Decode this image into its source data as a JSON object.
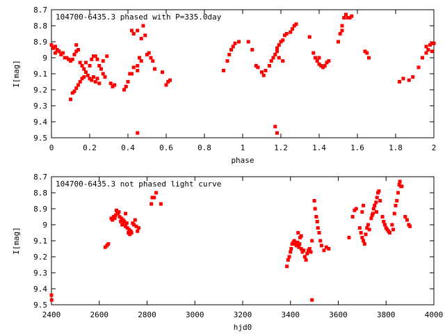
{
  "chart_data": [
    {
      "type": "scatter",
      "title": "104700-6435.3 phased with P=335.0day",
      "xlabel": "phase",
      "ylabel": "I[mag]",
      "xlim": [
        0,
        2
      ],
      "ylim": [
        9.5,
        8.7
      ],
      "y_inverted": true,
      "xticks": [
        "0",
        "0.2",
        "0.4",
        "0.6",
        "0.8",
        "1",
        "1.2",
        "1.4",
        "1.6",
        "1.8",
        "2"
      ],
      "yticks": [
        "8.7",
        "8.8",
        "8.9",
        "9",
        "9.1",
        "9.2",
        "9.3",
        "9.4",
        "9.5"
      ],
      "marker_color": "#ff0000",
      "grid": false,
      "points": [
        [
          0.0,
          8.92
        ],
        [
          0.01,
          8.94
        ],
        [
          0.02,
          8.93
        ],
        [
          0.02,
          8.97
        ],
        [
          0.03,
          8.95
        ],
        [
          0.04,
          8.96
        ],
        [
          0.05,
          8.98
        ],
        [
          0.06,
          8.97
        ],
        [
          0.07,
          9.0
        ],
        [
          0.08,
          9.0
        ],
        [
          0.09,
          9.01
        ],
        [
          0.1,
          9.02
        ],
        [
          0.11,
          9.01
        ],
        [
          0.12,
          8.98
        ],
        [
          0.13,
          8.96
        ],
        [
          0.14,
          8.95
        ],
        [
          0.1,
          9.26
        ],
        [
          0.11,
          9.22
        ],
        [
          0.12,
          9.21
        ],
        [
          0.13,
          9.19
        ],
        [
          0.14,
          9.17
        ],
        [
          0.15,
          9.15
        ],
        [
          0.16,
          9.13
        ],
        [
          0.17,
          9.12
        ],
        [
          0.15,
          9.03
        ],
        [
          0.16,
          9.05
        ],
        [
          0.17,
          9.07
        ],
        [
          0.18,
          9.09
        ],
        [
          0.19,
          9.11
        ],
        [
          0.2,
          9.05
        ],
        [
          0.21,
          9.01
        ],
        [
          0.22,
          8.99
        ],
        [
          0.23,
          8.99
        ],
        [
          0.24,
          9.01
        ],
        [
          0.25,
          9.05
        ],
        [
          0.26,
          9.07
        ],
        [
          0.27,
          9.1
        ],
        [
          0.28,
          9.12
        ],
        [
          0.2,
          9.13
        ],
        [
          0.21,
          9.14
        ],
        [
          0.22,
          9.12
        ],
        [
          0.23,
          9.15
        ],
        [
          0.24,
          9.13
        ],
        [
          0.25,
          9.16
        ],
        [
          0.13,
          8.92
        ],
        [
          0.18,
          9.03
        ],
        [
          0.27,
          9.02
        ],
        [
          0.29,
          8.99
        ],
        [
          0.31,
          9.16
        ],
        [
          0.32,
          9.18
        ],
        [
          0.33,
          9.17
        ],
        [
          0.38,
          9.2
        ],
        [
          0.39,
          9.18
        ],
        [
          0.4,
          9.15
        ],
        [
          0.41,
          9.1
        ],
        [
          0.42,
          9.1
        ],
        [
          0.43,
          9.06
        ],
        [
          0.42,
          8.83
        ],
        [
          0.43,
          8.85
        ],
        [
          0.45,
          8.83
        ],
        [
          0.47,
          8.88
        ],
        [
          0.48,
          8.8
        ],
        [
          0.49,
          8.86
        ],
        [
          0.46,
          9.0
        ],
        [
          0.47,
          9.02
        ],
        [
          0.5,
          8.98
        ],
        [
          0.51,
          8.97
        ],
        [
          0.52,
          9.0
        ],
        [
          0.53,
          9.02
        ],
        [
          0.54,
          9.07
        ],
        [
          0.45,
          9.05
        ],
        [
          0.45,
          9.08
        ],
        [
          0.45,
          9.47
        ],
        [
          0.58,
          9.09
        ],
        [
          0.6,
          9.17
        ],
        [
          0.61,
          9.15
        ],
        [
          0.62,
          9.14
        ],
        [
          0.9,
          9.08
        ],
        [
          0.92,
          9.02
        ],
        [
          0.93,
          8.98
        ],
        [
          0.94,
          8.95
        ],
        [
          0.95,
          8.93
        ],
        [
          0.96,
          8.91
        ],
        [
          0.98,
          8.9
        ],
        [
          1.03,
          8.9
        ],
        [
          1.05,
          8.95
        ],
        [
          1.07,
          9.05
        ],
        [
          1.08,
          9.06
        ],
        [
          1.1,
          9.09
        ],
        [
          1.11,
          9.11
        ],
        [
          1.12,
          9.08
        ],
        [
          1.14,
          9.05
        ],
        [
          1.15,
          9.02
        ],
        [
          1.16,
          9.0
        ],
        [
          1.17,
          8.98
        ],
        [
          1.18,
          8.96
        ],
        [
          1.19,
          8.92
        ],
        [
          1.2,
          8.9
        ],
        [
          1.21,
          8.89
        ],
        [
          1.22,
          8.86
        ],
        [
          1.23,
          8.85
        ],
        [
          1.25,
          8.84
        ],
        [
          1.26,
          8.82
        ],
        [
          1.27,
          8.8
        ],
        [
          1.28,
          8.79
        ],
        [
          1.18,
          8.94
        ],
        [
          1.19,
          9.0
        ],
        [
          1.21,
          9.02
        ],
        [
          1.17,
          9.43
        ],
        [
          1.18,
          9.47
        ],
        [
          1.35,
          8.87
        ],
        [
          1.37,
          8.97
        ],
        [
          1.38,
          9.0
        ],
        [
          1.39,
          9.02
        ],
        [
          1.4,
          9.04
        ],
        [
          1.41,
          9.05
        ],
        [
          1.42,
          9.06
        ],
        [
          1.43,
          9.05
        ],
        [
          1.44,
          9.03
        ],
        [
          1.45,
          9.02
        ],
        [
          1.4,
          9.0
        ],
        [
          1.5,
          8.9
        ],
        [
          1.51,
          8.85
        ],
        [
          1.52,
          8.8
        ],
        [
          1.53,
          8.75
        ],
        [
          1.54,
          8.73
        ],
        [
          1.55,
          8.75
        ],
        [
          1.56,
          8.75
        ],
        [
          1.52,
          8.83
        ],
        [
          1.57,
          8.74
        ],
        [
          1.64,
          8.96
        ],
        [
          1.65,
          8.97
        ],
        [
          1.66,
          9.0
        ],
        [
          1.82,
          9.15
        ],
        [
          1.84,
          9.13
        ],
        [
          1.87,
          9.14
        ],
        [
          1.89,
          9.12
        ],
        [
          1.92,
          9.06
        ],
        [
          1.94,
          9.0
        ],
        [
          1.96,
          8.97
        ],
        [
          1.97,
          8.95
        ],
        [
          1.98,
          8.92
        ],
        [
          1.99,
          8.91
        ],
        [
          2.0,
          8.91
        ],
        [
          1.96,
          8.93
        ],
        [
          1.99,
          8.96
        ]
      ]
    },
    {
      "type": "scatter",
      "title": "104700-6435.3 not phased light curve",
      "xlabel": "hjd0",
      "ylabel": "I[mag]",
      "xlim": [
        2400,
        4000
      ],
      "ylim": [
        9.5,
        8.7
      ],
      "y_inverted": true,
      "xticks": [
        "2400",
        "2600",
        "2800",
        "3000",
        "3200",
        "3400",
        "3600",
        "3800",
        "4000"
      ],
      "yticks": [
        "8.7",
        "8.8",
        "8.9",
        "9",
        "9.1",
        "9.2",
        "9.3",
        "9.4",
        "9.5"
      ],
      "marker_color": "#ff0000",
      "grid": false,
      "points": [
        [
          2400,
          9.44
        ],
        [
          2401,
          9.47
        ],
        [
          2625,
          9.14
        ],
        [
          2632,
          9.13
        ],
        [
          2638,
          9.12
        ],
        [
          2650,
          8.96
        ],
        [
          2655,
          8.97
        ],
        [
          2660,
          8.95
        ],
        [
          2665,
          8.96
        ],
        [
          2668,
          8.94
        ],
        [
          2672,
          8.91
        ],
        [
          2675,
          8.92
        ],
        [
          2678,
          8.93
        ],
        [
          2682,
          8.92
        ],
        [
          2685,
          8.95
        ],
        [
          2690,
          8.98
        ],
        [
          2693,
          8.96
        ],
        [
          2696,
          9.0
        ],
        [
          2700,
          9.0
        ],
        [
          2705,
          8.98
        ],
        [
          2710,
          9.01
        ],
        [
          2715,
          8.99
        ],
        [
          2718,
          9.02
        ],
        [
          2722,
          9.05
        ],
        [
          2725,
          9.03
        ],
        [
          2728,
          9.06
        ],
        [
          2732,
          9.04
        ],
        [
          2735,
          9.05
        ],
        [
          2740,
          8.99
        ],
        [
          2745,
          9.0
        ],
        [
          2750,
          8.97
        ],
        [
          2755,
          9.01
        ],
        [
          2760,
          9.04
        ],
        [
          2765,
          9.02
        ],
        [
          2700,
          8.97
        ],
        [
          2710,
          8.93
        ],
        [
          2818,
          8.87
        ],
        [
          2822,
          8.83
        ],
        [
          2830,
          8.83
        ],
        [
          2838,
          8.8
        ],
        [
          2858,
          8.87
        ],
        [
          3385,
          9.26
        ],
        [
          3390,
          9.22
        ],
        [
          3395,
          9.2
        ],
        [
          3400,
          9.17
        ],
        [
          3403,
          9.15
        ],
        [
          3407,
          9.12
        ],
        [
          3412,
          9.11
        ],
        [
          3416,
          9.1
        ],
        [
          3420,
          9.12
        ],
        [
          3425,
          9.13
        ],
        [
          3430,
          9.11
        ],
        [
          3435,
          9.14
        ],
        [
          3438,
          9.12
        ],
        [
          3445,
          9.15
        ],
        [
          3450,
          9.17
        ],
        [
          3455,
          9.16
        ],
        [
          3460,
          9.2
        ],
        [
          3465,
          9.22
        ],
        [
          3470,
          9.18
        ],
        [
          3475,
          9.16
        ],
        [
          3480,
          9.15
        ],
        [
          3485,
          9.17
        ],
        [
          3490,
          9.1
        ],
        [
          3432,
          9.05
        ],
        [
          3440,
          9.08
        ],
        [
          3445,
          9.07
        ],
        [
          3500,
          8.85
        ],
        [
          3503,
          8.9
        ],
        [
          3508,
          8.95
        ],
        [
          3512,
          8.98
        ],
        [
          3515,
          9.02
        ],
        [
          3520,
          9.05
        ],
        [
          3525,
          9.1
        ],
        [
          3530,
          9.13
        ],
        [
          3540,
          9.16
        ],
        [
          3550,
          9.14
        ],
        [
          3560,
          9.15
        ],
        [
          3490,
          9.47
        ],
        [
          3645,
          9.08
        ],
        [
          3660,
          8.95
        ],
        [
          3668,
          8.91
        ],
        [
          3675,
          8.9
        ],
        [
          3690,
          9.02
        ],
        [
          3695,
          9.05
        ],
        [
          3700,
          9.08
        ],
        [
          3705,
          9.1
        ],
        [
          3710,
          9.12
        ],
        [
          3715,
          9.06
        ],
        [
          3720,
          9.02
        ],
        [
          3725,
          9.0
        ],
        [
          3730,
          9.03
        ],
        [
          3700,
          8.92
        ],
        [
          3705,
          8.88
        ],
        [
          3738,
          8.96
        ],
        [
          3742,
          8.94
        ],
        [
          3745,
          8.93
        ],
        [
          3748,
          8.9
        ],
        [
          3752,
          8.88
        ],
        [
          3758,
          8.86
        ],
        [
          3762,
          8.83
        ],
        [
          3766,
          8.8
        ],
        [
          3770,
          8.79
        ],
        [
          3775,
          8.85
        ],
        [
          3785,
          8.95
        ],
        [
          3790,
          8.98
        ],
        [
          3795,
          9.0
        ],
        [
          3800,
          9.02
        ],
        [
          3805,
          9.03
        ],
        [
          3810,
          9.04
        ],
        [
          3815,
          9.05
        ],
        [
          3825,
          9.0
        ],
        [
          3830,
          9.03
        ],
        [
          3760,
          8.92
        ],
        [
          3835,
          8.93
        ],
        [
          3840,
          8.88
        ],
        [
          3845,
          8.85
        ],
        [
          3850,
          8.8
        ],
        [
          3855,
          8.75
        ],
        [
          3858,
          8.73
        ],
        [
          3862,
          8.76
        ],
        [
          3866,
          8.76
        ],
        [
          3880,
          8.95
        ],
        [
          3888,
          8.97
        ],
        [
          3895,
          9.0
        ],
        [
          3900,
          9.01
        ]
      ]
    }
  ]
}
